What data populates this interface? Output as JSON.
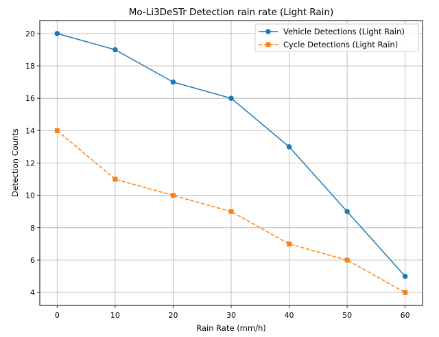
{
  "chart_data": {
    "type": "line",
    "title": "Mo-Li3DeSTr Detection rain rate (Light Rain)",
    "xlabel": "Rain Rate (mm/h)",
    "ylabel": "Detection Counts",
    "x": [
      0,
      10,
      20,
      30,
      40,
      50,
      60
    ],
    "xlim": [
      -3,
      63
    ],
    "ylim": [
      3.2,
      20.8
    ],
    "xticks": [
      0,
      10,
      20,
      30,
      40,
      50,
      60
    ],
    "yticks": [
      4,
      6,
      8,
      10,
      12,
      14,
      16,
      18,
      20
    ],
    "grid": true,
    "legend_position": "top-right",
    "series": [
      {
        "name": "Vehicle Detections (Light Rain)",
        "values": [
          20,
          19,
          17,
          16,
          13,
          9,
          5
        ],
        "color": "#1f77b4",
        "marker": "circle",
        "linestyle": "solid"
      },
      {
        "name": "Cycle Detections (Light Rain)",
        "values": [
          14,
          11,
          10,
          9,
          7,
          6,
          4
        ],
        "color": "#ff7f0e",
        "marker": "square",
        "linestyle": "dashed"
      }
    ]
  }
}
